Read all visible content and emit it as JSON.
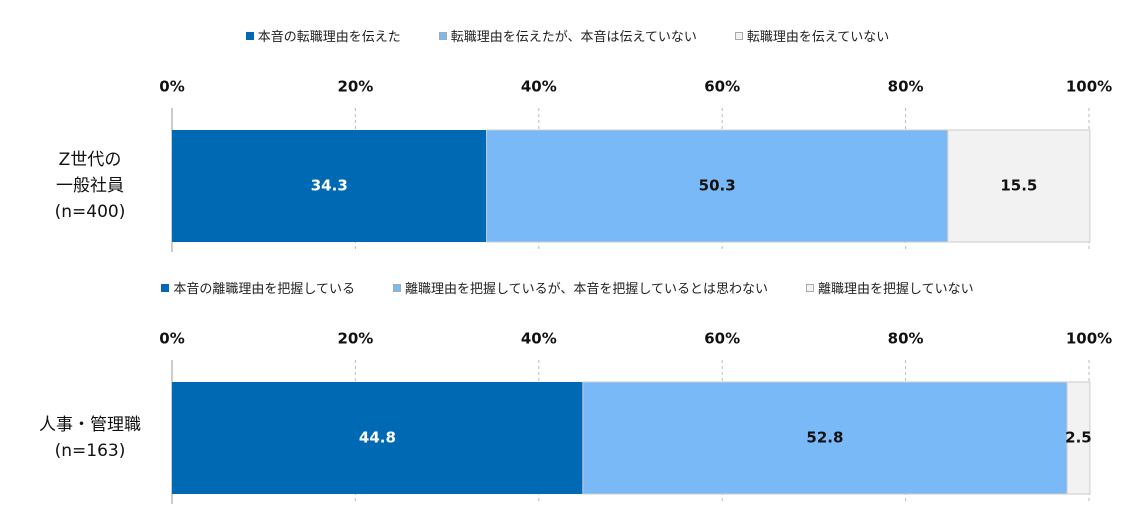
{
  "chart_data": [
    {
      "type": "stacked_barh",
      "categories": [
        "Z世代の\n一般社員\n(n=400)"
      ],
      "series": [
        {
          "name": "本音の転職理由を伝えた",
          "color": "#0069b4",
          "values": [
            34.3
          ]
        },
        {
          "name": "転職理由を伝えたが、本音は伝えていない",
          "color": "#79b9f7",
          "values": [
            50.3
          ]
        },
        {
          "name": "転職理由を伝えていない",
          "color": "#f2f2f2",
          "values": [
            15.5
          ]
        }
      ],
      "xlim": [
        0,
        100
      ],
      "xticks": [
        {
          "value": 0,
          "label": "0%"
        },
        {
          "value": 20,
          "label": "20%"
        },
        {
          "value": 40,
          "label": "40%"
        },
        {
          "value": 60,
          "label": "60%"
        },
        {
          "value": 80,
          "label": "80%"
        },
        {
          "value": 100,
          "label": "100%"
        }
      ],
      "grid": true
    },
    {
      "type": "stacked_barh",
      "categories": [
        "人事・管理職\n(n=163)"
      ],
      "series": [
        {
          "name": "本音の離職理由を把握している",
          "color": "#0069b4",
          "values": [
            44.8
          ]
        },
        {
          "name": "離職理由を把握しているが、本音を把握しているとは思わない",
          "color": "#79b9f7",
          "values": [
            52.8
          ]
        },
        {
          "name": "離職理由を把握していない",
          "color": "#f2f2f2",
          "values": [
            2.5
          ]
        }
      ],
      "xlim": [
        0,
        100
      ],
      "xticks": [
        {
          "value": 0,
          "label": "0%"
        },
        {
          "value": 20,
          "label": "20%"
        },
        {
          "value": 40,
          "label": "40%"
        },
        {
          "value": 60,
          "label": "60%"
        },
        {
          "value": 80,
          "label": "80%"
        },
        {
          "value": 100,
          "label": "100%"
        }
      ],
      "grid": true
    }
  ]
}
